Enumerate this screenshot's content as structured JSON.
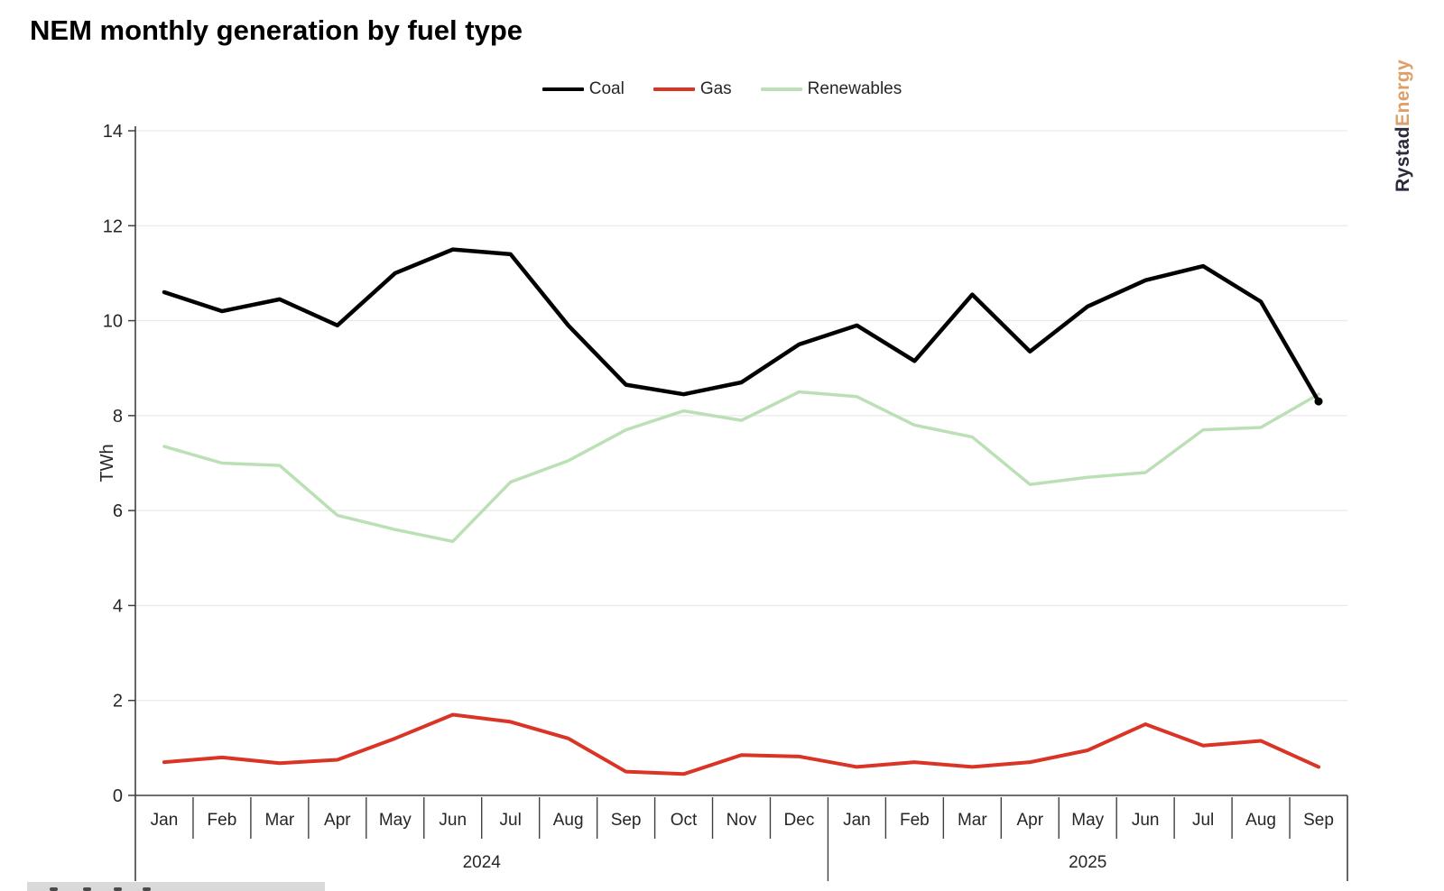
{
  "title": "NEM monthly generation by fuel type",
  "logo": {
    "part1": "Rystad",
    "part2": "Energy"
  },
  "legend": [
    {
      "label": "Coal",
      "color": "#000000"
    },
    {
      "label": "Gas",
      "color": "#d93425"
    },
    {
      "label": "Renewables",
      "color": "#bce0b6"
    }
  ],
  "chart_data": {
    "type": "line",
    "title": "NEM monthly generation by fuel type",
    "xlabel": "",
    "ylabel": "TWh",
    "ylim": [
      0,
      14
    ],
    "ytick_step": 2,
    "grid": true,
    "legend_position": "top-center",
    "categories": [
      "Jan",
      "Feb",
      "Mar",
      "Apr",
      "May",
      "Jun",
      "Jul",
      "Aug",
      "Sep",
      "Oct",
      "Nov",
      "Dec",
      "Jan",
      "Feb",
      "Mar",
      "Apr",
      "May",
      "Jun",
      "Jul",
      "Aug",
      "Sep"
    ],
    "year_groups": [
      {
        "label": "2024",
        "months": 12
      },
      {
        "label": "2025",
        "months": 9
      }
    ],
    "series": [
      {
        "name": "Renewables",
        "color": "#bce0b6",
        "stroke_width": 3.5,
        "end_marker": false,
        "values": [
          7.35,
          7.0,
          6.95,
          5.9,
          5.6,
          5.35,
          6.6,
          7.05,
          7.7,
          8.1,
          7.9,
          8.5,
          8.4,
          7.8,
          7.55,
          6.55,
          6.7,
          6.8,
          7.7,
          7.75,
          8.45
        ]
      },
      {
        "name": "Gas",
        "color": "#d93425",
        "stroke_width": 4,
        "end_marker": false,
        "values": [
          0.7,
          0.8,
          0.68,
          0.75,
          1.2,
          1.7,
          1.55,
          1.2,
          0.5,
          0.45,
          0.85,
          0.82,
          0.6,
          0.7,
          0.6,
          0.7,
          0.95,
          1.5,
          1.05,
          1.15,
          0.6
        ]
      },
      {
        "name": "Coal",
        "color": "#000000",
        "stroke_width": 4.5,
        "end_marker": true,
        "values": [
          10.6,
          10.2,
          10.45,
          9.9,
          11.0,
          11.5,
          11.4,
          9.9,
          8.65,
          8.45,
          8.7,
          9.5,
          9.9,
          9.15,
          10.55,
          9.35,
          10.3,
          10.85,
          11.15,
          10.4,
          8.3
        ]
      }
    ]
  },
  "style": {
    "gridline_color": "#eaeaea",
    "axis_color": "#3f3f3f",
    "tick_label_color": "#262626"
  }
}
